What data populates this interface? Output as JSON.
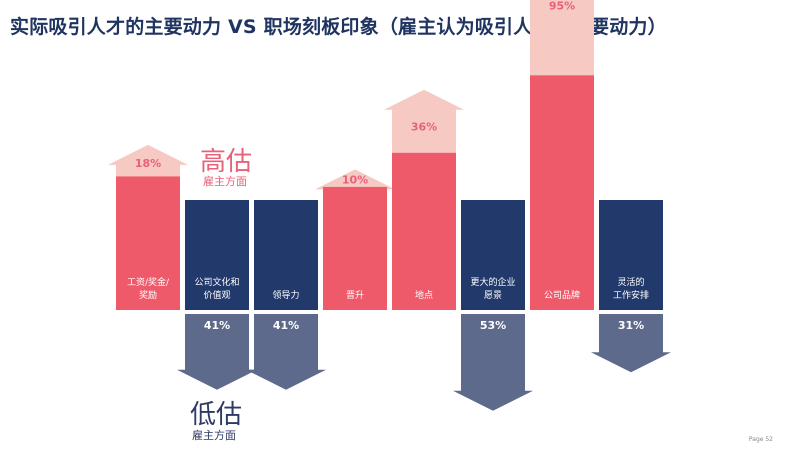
{
  "title": "实际吸引人才的主要动力 VS 职场刻板印象（雇主认为吸引人才的主要动力）",
  "annotations": {
    "over_main": "高估",
    "over_sub": "雇主方面",
    "under_main": "低估",
    "under_sub": "雇主方面"
  },
  "page_label": "Page 52",
  "colors": {
    "overestimated_bar": "#ef5a6a",
    "overestimated_arrow": "#f6c9c2",
    "underestimated_bar": "#223a6b",
    "underestimated_arrow": "#5e6a8c",
    "label_text": "#ffffff",
    "over_value_text": "#e8617a"
  },
  "chart_data": {
    "type": "bar",
    "categories": [
      "工资/奖金/奖励",
      "公司文化和价值观",
      "领导力",
      "晋升",
      "地点",
      "更大的企业愿景",
      "公司品牌",
      "灵活的工作安排"
    ],
    "category_lines": [
      [
        "工资/奖金/",
        "奖励"
      ],
      [
        "公司文化和",
        "价值观"
      ],
      [
        "领导力"
      ],
      [
        "晋升"
      ],
      [
        "地点"
      ],
      [
        "更大的企业",
        "愿景"
      ],
      [
        "公司品牌"
      ],
      [
        "灵活的",
        "工作安排"
      ]
    ],
    "gap_direction": [
      "over",
      "under",
      "under",
      "over",
      "over",
      "under",
      "over",
      "under"
    ],
    "gap_labels": [
      "18%",
      "41%",
      "41%",
      "10%",
      "36%",
      "53%",
      "95%",
      "31%"
    ],
    "gap_values": [
      18,
      41,
      41,
      10,
      36,
      53,
      95,
      31
    ]
  }
}
